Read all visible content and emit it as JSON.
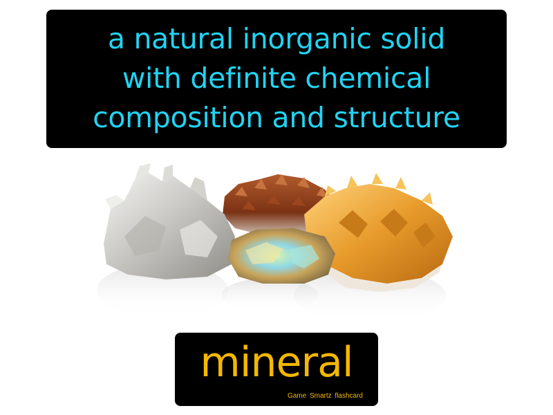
{
  "card": {
    "definition_lines": [
      "a natural inorganic solid",
      "with definite chemical",
      "composition and structure"
    ],
    "term": "mineral",
    "brand": "Game Smartz flashcard"
  },
  "colors": {
    "definition_text": "#22d3f2",
    "term_text": "#f5b800",
    "box_background": "#000000",
    "page_background": "#ffffff"
  },
  "image": {
    "subject": "mineral-crystal-specimens"
  }
}
